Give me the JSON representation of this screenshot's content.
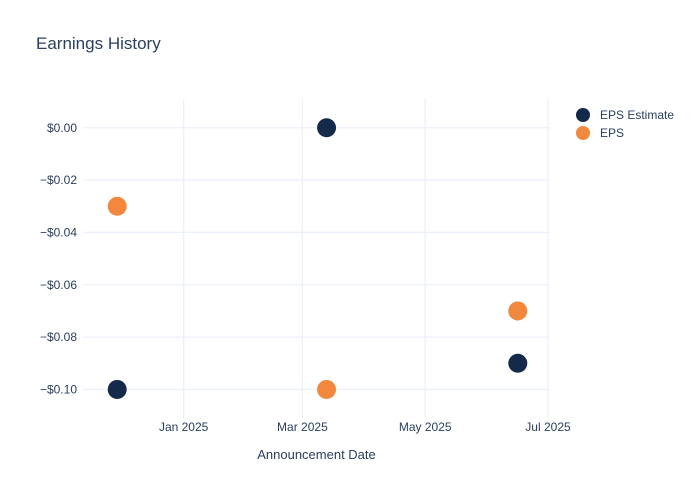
{
  "chart_data": {
    "type": "scatter",
    "title": "Earnings History",
    "xlabel": "Announcement Date",
    "ylabel": "",
    "x_range": [
      "2024-11-12",
      "2025-07-02"
    ],
    "y_range": [
      -0.109,
      0.011
    ],
    "x_ticks": [
      {
        "date": "2025-01-01",
        "label": "Jan 2025"
      },
      {
        "date": "2025-03-01",
        "label": "Mar 2025"
      },
      {
        "date": "2025-05-01",
        "label": "May 2025"
      },
      {
        "date": "2025-07-01",
        "label": "Jul 2025"
      }
    ],
    "y_ticks": [
      {
        "value": 0.0,
        "label": "$0.00"
      },
      {
        "value": -0.02,
        "label": "−$0.02"
      },
      {
        "value": -0.04,
        "label": "−$0.04"
      },
      {
        "value": -0.06,
        "label": "−$0.06"
      },
      {
        "value": -0.08,
        "label": "−$0.08"
      },
      {
        "value": -0.1,
        "label": "−$0.10"
      }
    ],
    "grid": true,
    "legend_position": "top-right",
    "marker_size": 19,
    "series": [
      {
        "name": "EPS Estimate",
        "color": "#15294b",
        "points": [
          {
            "date": "2024-11-29",
            "value": -0.1
          },
          {
            "date": "2025-03-13",
            "value": 0.0
          },
          {
            "date": "2025-06-16",
            "value": -0.09
          }
        ]
      },
      {
        "name": "EPS",
        "color": "#f2883e",
        "points": [
          {
            "date": "2024-11-29",
            "value": -0.03
          },
          {
            "date": "2025-03-13",
            "value": -0.1
          },
          {
            "date": "2025-06-16",
            "value": -0.07
          }
        ]
      }
    ],
    "colors": {
      "text": "#2a3f5f",
      "grid": "#ecf0f8",
      "background": "#ffffff"
    }
  }
}
